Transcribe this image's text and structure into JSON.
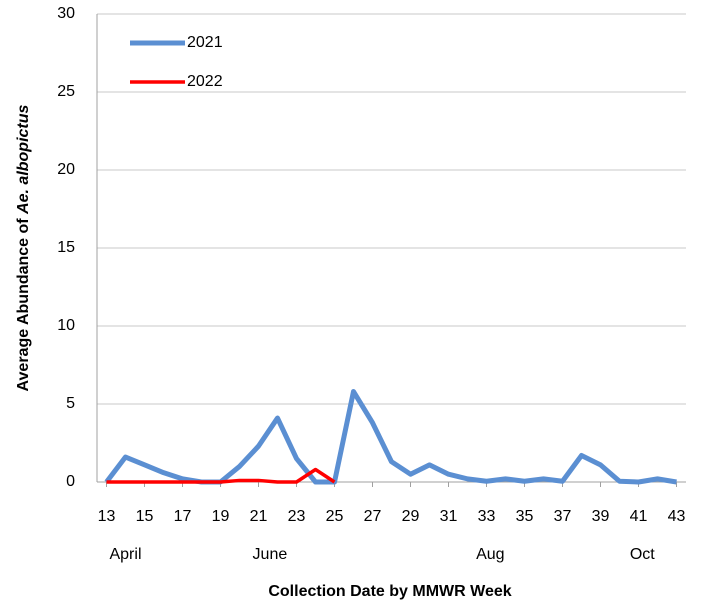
{
  "chart_data": {
    "type": "line",
    "x_label": "Collection Date by MMWR Week",
    "y_label_parts": [
      "Average Abundance of ",
      "Ae. albopictus"
    ],
    "x": [
      13,
      14,
      15,
      16,
      17,
      18,
      19,
      20,
      21,
      22,
      23,
      24,
      25,
      26,
      27,
      28,
      29,
      30,
      31,
      32,
      33,
      34,
      35,
      36,
      37,
      38,
      39,
      40,
      41,
      42,
      43
    ],
    "series": [
      {
        "name": "2021",
        "color": "#5b8fd2",
        "values": [
          0,
          1.6,
          1.1,
          0.6,
          0.2,
          0,
          0,
          1,
          2.3,
          4.1,
          1.5,
          0,
          0,
          5.8,
          3.8,
          1.3,
          0.5,
          1.1,
          0.5,
          0.2,
          0.05,
          0.2,
          0.05,
          0.2,
          0.05,
          1.7,
          1.1,
          0.05,
          0,
          0.2,
          0
        ]
      },
      {
        "name": "2022",
        "color": "#ff0000",
        "values": [
          0,
          0,
          0,
          0,
          0,
          0,
          0,
          0.1,
          0.1,
          0,
          0,
          0.8,
          0,
          null,
          null,
          null,
          null,
          null,
          null,
          null,
          null,
          null,
          null,
          null,
          null,
          null,
          null,
          null,
          null,
          null,
          null
        ]
      }
    ],
    "xlim": [
      12.5,
      43.5
    ],
    "xticks": [
      13,
      15,
      17,
      19,
      21,
      23,
      25,
      27,
      29,
      31,
      33,
      35,
      37,
      39,
      41,
      43
    ],
    "month_labels": [
      {
        "value": 14,
        "label": "April"
      },
      {
        "value": 21.6,
        "label": "June"
      },
      {
        "value": 33.2,
        "label": "Aug"
      },
      {
        "value": 41.2,
        "label": "Oct"
      }
    ],
    "ylim": [
      0,
      30
    ],
    "yticks": [
      0,
      5,
      10,
      15,
      20,
      25,
      30
    ],
    "grid": true,
    "legend": "top-left"
  }
}
